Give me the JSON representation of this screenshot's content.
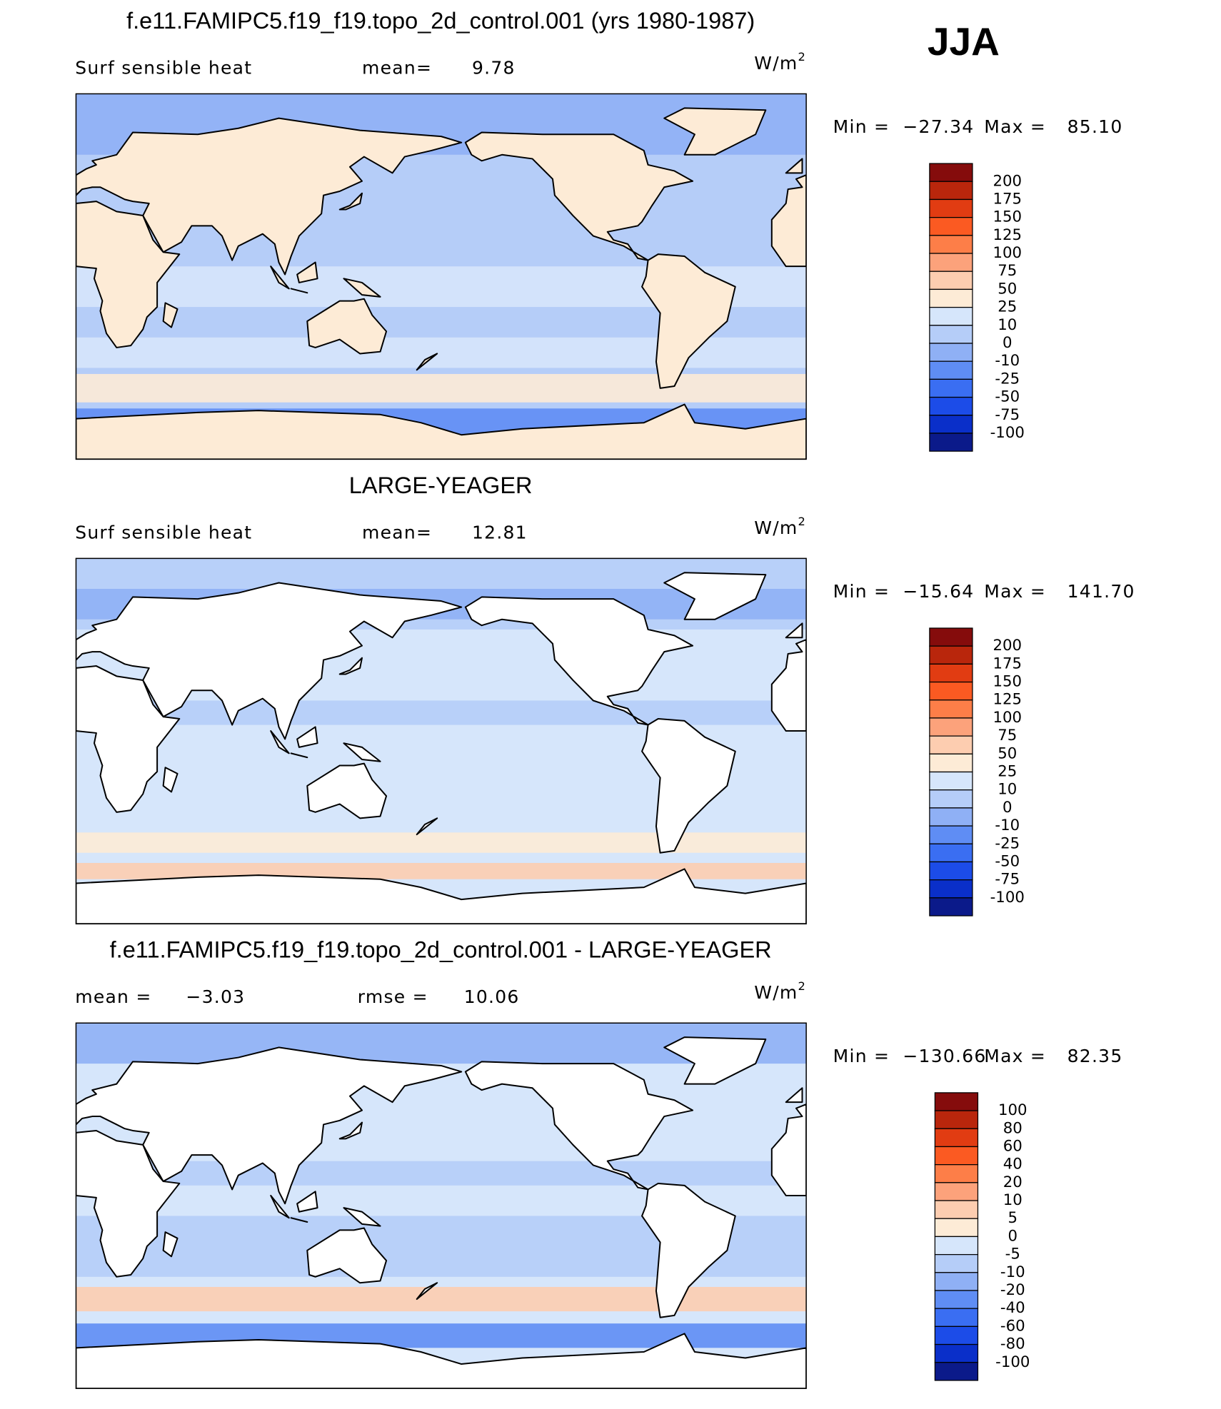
{
  "season": "JJA",
  "panels": [
    {
      "title": "f.e11.FAMIPC5.f19_f19.topo_2d_control.001 (yrs 1980-1987)",
      "field": "Surf sensible heat",
      "stats": [
        {
          "label": "mean=",
          "value": "9.78"
        }
      ],
      "units": "W/m",
      "units_exp": "2",
      "min_label": "Min  =",
      "min": "−27.34",
      "max_label": "Max  =",
      "max": "85.10",
      "colorbar": {
        "levels": [
          200,
          175,
          150,
          125,
          100,
          75,
          50,
          25,
          10,
          0,
          -10,
          -25,
          -50,
          -75,
          -100
        ],
        "colors": [
          "#850c0c",
          "#b9260c",
          "#e13c12",
          "#fb5a22",
          "#fd7e48",
          "#fca27b",
          "#fdcdb0",
          "#fdebd6",
          "#d6e6fb",
          "#b5cdf8",
          "#8fb0f5",
          "#5f8df4",
          "#3a6ef2",
          "#1c4ce8",
          "#0a2fc9",
          "#0b1a8a"
        ]
      }
    },
    {
      "title": "LARGE-YEAGER",
      "field": "Surf sensible heat",
      "stats": [
        {
          "label": "mean=",
          "value": "12.81"
        }
      ],
      "units": "W/m",
      "units_exp": "2",
      "min_label": "Min  =",
      "min": "−15.64",
      "max_label": "Max  =",
      "max": "141.70",
      "colorbar": {
        "levels": [
          200,
          175,
          150,
          125,
          100,
          75,
          50,
          25,
          10,
          0,
          -10,
          -25,
          -50,
          -75,
          -100
        ],
        "colors": [
          "#850c0c",
          "#b9260c",
          "#e13c12",
          "#fb5a22",
          "#fd7e48",
          "#fca27b",
          "#fdcdb0",
          "#fdebd6",
          "#d6e6fb",
          "#b5cdf8",
          "#8fb0f5",
          "#5f8df4",
          "#3a6ef2",
          "#1c4ce8",
          "#0a2fc9",
          "#0b1a8a"
        ]
      }
    },
    {
      "title": "f.e11.FAMIPC5.f19_f19.topo_2d_control.001 - LARGE-YEAGER",
      "stats": [
        {
          "label": "mean =",
          "value": "−3.03"
        },
        {
          "label": "rmse =",
          "value": "10.06"
        }
      ],
      "units": "W/m",
      "units_exp": "2",
      "min_label": "Min  =",
      "min": "−130.66",
      "max_label": "Max  =",
      "max": "82.35",
      "colorbar": {
        "levels": [
          100,
          80,
          60,
          40,
          20,
          10,
          5,
          0,
          -5,
          -10,
          -20,
          -40,
          -60,
          -80,
          -100
        ],
        "colors": [
          "#850c0c",
          "#b9260c",
          "#e13c12",
          "#fb5a22",
          "#fd7e48",
          "#fca27b",
          "#fdcdb0",
          "#fdebd6",
          "#d6e6fb",
          "#b5cdf8",
          "#8fb0f5",
          "#5f8df4",
          "#3a6ef2",
          "#1c4ce8",
          "#0a2fc9",
          "#0b1a8a"
        ]
      }
    }
  ]
}
